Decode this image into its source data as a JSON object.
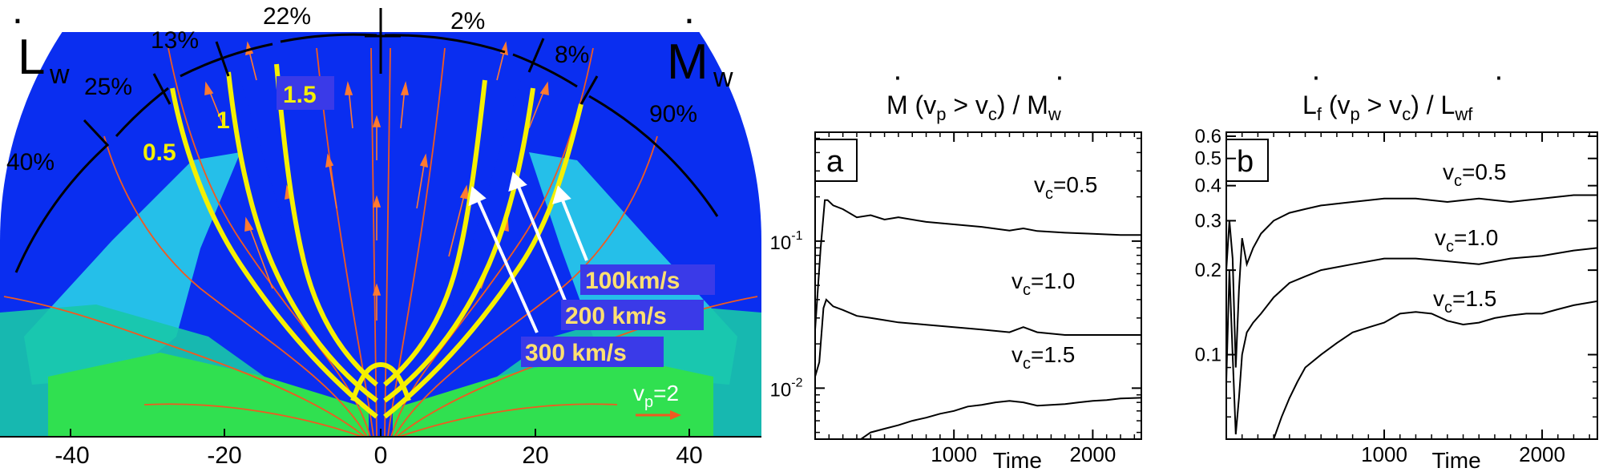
{
  "colors": {
    "outer": "#0a2ef0",
    "cyan": "#2ad8e8",
    "teal": "#18c8a8",
    "green": "#30e050",
    "fieldline": "#f05a20",
    "yellow": "#f5f000",
    "arrow": "#ff7a30",
    "textbox": "#3a3ae8"
  },
  "left_panel": {
    "xticks": [
      "-40",
      "-20",
      "0",
      "20",
      "40"
    ],
    "ldot_label": "L",
    "ldot_sub": "w",
    "mdot_label": "M",
    "mdot_sub": "w",
    "percent_labels": [
      "40%",
      "25%",
      "13%",
      "22%",
      "2%",
      "8%",
      "90%"
    ],
    "vc_labels": [
      "0.5",
      "1",
      "1.5"
    ],
    "speed_labels": [
      "100km/s",
      "200 km/s",
      "300 km/s"
    ],
    "vp_label": "v",
    "vp_sub": "p",
    "vp_value": "=2"
  },
  "chart_data": [
    {
      "id": "a",
      "type": "line",
      "panel_label": "a",
      "title_main": "M (v",
      "title_sub1": "p",
      "title_mid": " > v",
      "title_sub2": "c",
      "title_end": ") / M",
      "title_sub3": "w",
      "xlabel": "Time",
      "yscale": "log",
      "xlim": [
        0,
        2350
      ],
      "ylim": [
        0.0045,
        0.55
      ],
      "xticks": [
        1000,
        2000
      ],
      "xtick_labels": [
        "1000",
        "2000"
      ],
      "yticks": [
        0.1,
        0.01
      ],
      "ytick_base": "10",
      "ytick_exps": [
        "-1",
        "-2"
      ],
      "series": [
        {
          "name": "vc=0.5",
          "label_prefix": "v",
          "label_sub": "c",
          "label_value": "=0.5",
          "x": [
            0,
            40,
            70,
            90,
            130,
            200,
            300,
            400,
            500,
            600,
            800,
            1000,
            1200,
            1400,
            1500,
            1600,
            1800,
            2000,
            2200,
            2350
          ],
          "values": [
            0.025,
            0.09,
            0.19,
            0.19,
            0.175,
            0.165,
            0.145,
            0.15,
            0.14,
            0.145,
            0.135,
            0.13,
            0.125,
            0.118,
            0.122,
            0.117,
            0.114,
            0.112,
            0.11,
            0.11
          ]
        },
        {
          "name": "vc=1.0",
          "label_prefix": "v",
          "label_sub": "c",
          "label_value": "=1.0",
          "x": [
            0,
            30,
            60,
            80,
            130,
            200,
            300,
            400,
            500,
            600,
            800,
            1000,
            1200,
            1400,
            1500,
            1600,
            1800,
            2000,
            2200,
            2350
          ],
          "values": [
            0.012,
            0.015,
            0.035,
            0.04,
            0.036,
            0.034,
            0.031,
            0.03,
            0.029,
            0.028,
            0.027,
            0.026,
            0.025,
            0.024,
            0.026,
            0.024,
            0.023,
            0.023,
            0.023,
            0.023
          ]
        },
        {
          "name": "vc=1.5",
          "label_prefix": "v",
          "label_sub": "c",
          "label_value": "=1.5",
          "x": [
            330,
            400,
            500,
            600,
            700,
            800,
            900,
            1000,
            1100,
            1200,
            1300,
            1400,
            1500,
            1600,
            1700,
            1800,
            1900,
            2000,
            2100,
            2200,
            2350
          ],
          "values": [
            0.0045,
            0.005,
            0.0053,
            0.0056,
            0.006,
            0.0063,
            0.0067,
            0.007,
            0.0075,
            0.0077,
            0.008,
            0.0082,
            0.008,
            0.0076,
            0.0077,
            0.0078,
            0.008,
            0.0082,
            0.0083,
            0.0085,
            0.0086
          ]
        }
      ]
    },
    {
      "id": "b",
      "type": "line",
      "panel_label": "b",
      "title_main": "L",
      "title_sub0": "f",
      "title_mid1": " (v",
      "title_sub1": "p",
      "title_mid": " > v",
      "title_sub2": "c",
      "title_end": ") / L",
      "title_sub3": "wf",
      "xlabel": "Time",
      "yscale": "log",
      "xlim": [
        0,
        2350
      ],
      "ylim": [
        0.05,
        0.62
      ],
      "xticks": [
        1000,
        2000
      ],
      "xtick_labels": [
        "1000",
        "2000"
      ],
      "yticks": [
        0.6,
        0.5,
        0.4,
        0.3,
        0.2,
        0.1
      ],
      "ytick_labels": [
        "0.6",
        "0.5",
        "0.4",
        "0.3",
        "0.2",
        "0.1"
      ],
      "series": [
        {
          "name": "vc=0.5",
          "label_prefix": "v",
          "label_sub": "c",
          "label_value": "=0.5",
          "x": [
            0,
            20,
            40,
            60,
            80,
            100,
            130,
            170,
            220,
            300,
            400,
            500,
            600,
            800,
            1000,
            1200,
            1400,
            1600,
            1800,
            2000,
            2200,
            2350
          ],
          "values": [
            0.2,
            0.3,
            0.22,
            0.09,
            0.17,
            0.26,
            0.21,
            0.24,
            0.27,
            0.3,
            0.32,
            0.33,
            0.34,
            0.35,
            0.36,
            0.36,
            0.35,
            0.36,
            0.35,
            0.36,
            0.37,
            0.37
          ]
        },
        {
          "name": "vc=1.0",
          "label_prefix": "v",
          "label_sub": "c",
          "label_value": "=1.0",
          "x": [
            0,
            20,
            40,
            60,
            80,
            100,
            130,
            170,
            220,
            300,
            400,
            500,
            600,
            800,
            1000,
            1200,
            1400,
            1600,
            1800,
            2000,
            2200,
            2350
          ],
          "values": [
            0.08,
            0.2,
            0.1,
            0.052,
            0.07,
            0.1,
            0.12,
            0.13,
            0.14,
            0.16,
            0.18,
            0.19,
            0.2,
            0.21,
            0.22,
            0.22,
            0.215,
            0.21,
            0.22,
            0.225,
            0.235,
            0.24
          ]
        },
        {
          "name": "vc=1.5",
          "label_prefix": "v",
          "label_sub": "c",
          "label_value": "=1.5",
          "x": [
            300,
            350,
            400,
            450,
            500,
            600,
            700,
            800,
            900,
            1000,
            1100,
            1200,
            1300,
            1400,
            1500,
            1600,
            1700,
            1800,
            1900,
            2000,
            2100,
            2200,
            2350
          ],
          "values": [
            0.05,
            0.06,
            0.07,
            0.08,
            0.09,
            0.1,
            0.11,
            0.12,
            0.125,
            0.13,
            0.14,
            0.142,
            0.14,
            0.132,
            0.128,
            0.13,
            0.135,
            0.138,
            0.14,
            0.14,
            0.145,
            0.15,
            0.155
          ]
        }
      ]
    }
  ]
}
